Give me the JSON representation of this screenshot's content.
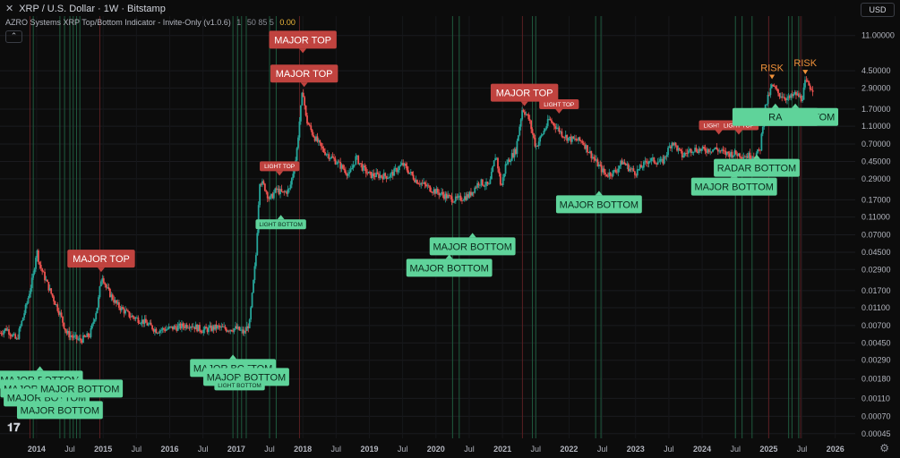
{
  "header": {
    "close_glyph": "✕",
    "symbol": "XRP / U.S. Dollar · 1W · Bitstamp",
    "indicator_name": "AZRO Systems XRP Top/Bottom Indicator - Invite-Only (v1.0.6)",
    "indicator_params": "1",
    "indicator_params2": "50 85 5",
    "indicator_value": "0.00",
    "collapse_glyph": "⌃"
  },
  "currency": "USD",
  "colors": {
    "bg": "#0c0c0c",
    "up": "#26a69a",
    "down": "#ef5350",
    "top_label": "#c0433f",
    "bottom_label": "#5fd39a",
    "risk": "#f0923a",
    "vline_green": "#1f5a3e",
    "vline_red": "#5a1f22"
  },
  "icons": {
    "logo": "tradingview-logo-icon",
    "settings": "gear-icon"
  },
  "chart_data": {
    "type": "candlestick",
    "y_scale": "log",
    "ylim": [
      0.0004,
      18
    ],
    "xlim": [
      2013.45,
      2026.3
    ],
    "y_ticks": [
      "11.00000",
      "4.50000",
      "2.90000",
      "1.70000",
      "1.10000",
      "0.70000",
      "0.45000",
      "0.29000",
      "0.17000",
      "0.11000",
      "0.07000",
      "0.04500",
      "0.02900",
      "0.01700",
      "0.01100",
      "0.00700",
      "0.00450",
      "0.00290",
      "0.00180",
      "0.00110",
      "0.00070",
      "0.00045"
    ],
    "x_ticks": [
      {
        "label": "2014",
        "x": 2014.0
      },
      {
        "label": "Jul",
        "x": 2014.5
      },
      {
        "label": "2015",
        "x": 2015.0
      },
      {
        "label": "Jul",
        "x": 2015.5
      },
      {
        "label": "2016",
        "x": 2016.0
      },
      {
        "label": "Jul",
        "x": 2016.5
      },
      {
        "label": "2017",
        "x": 2017.0
      },
      {
        "label": "Jul",
        "x": 2017.5
      },
      {
        "label": "2018",
        "x": 2018.0
      },
      {
        "label": "Jul",
        "x": 2018.5
      },
      {
        "label": "2019",
        "x": 2019.0
      },
      {
        "label": "Jul",
        "x": 2019.5
      },
      {
        "label": "2020",
        "x": 2020.0
      },
      {
        "label": "Jul",
        "x": 2020.5
      },
      {
        "label": "2021",
        "x": 2021.0
      },
      {
        "label": "Jul",
        "x": 2021.5
      },
      {
        "label": "2022",
        "x": 2022.0
      },
      {
        "label": "Jul",
        "x": 2022.5
      },
      {
        "label": "2023",
        "x": 2023.0
      },
      {
        "label": "Jul",
        "x": 2023.5
      },
      {
        "label": "2024",
        "x": 2024.0
      },
      {
        "label": "Jul",
        "x": 2024.5
      },
      {
        "label": "2025",
        "x": 2025.0
      },
      {
        "label": "Jul",
        "x": 2025.5
      },
      {
        "label": "2026",
        "x": 2026.0
      }
    ],
    "price_path": [
      [
        2013.45,
        0.0058
      ],
      [
        2013.55,
        0.0065
      ],
      [
        2013.7,
        0.0048
      ],
      [
        2013.85,
        0.012
      ],
      [
        2013.95,
        0.025
      ],
      [
        2014.0,
        0.048
      ],
      [
        2014.05,
        0.032
      ],
      [
        2014.2,
        0.017
      ],
      [
        2014.35,
        0.0095
      ],
      [
        2014.45,
        0.0058
      ],
      [
        2014.55,
        0.0052
      ],
      [
        2014.65,
        0.0048
      ],
      [
        2014.8,
        0.0055
      ],
      [
        2014.92,
        0.012
      ],
      [
        2014.98,
        0.026
      ],
      [
        2015.05,
        0.018
      ],
      [
        2015.2,
        0.012
      ],
      [
        2015.4,
        0.009
      ],
      [
        2015.6,
        0.0078
      ],
      [
        2015.8,
        0.0062
      ],
      [
        2016.0,
        0.0065
      ],
      [
        2016.15,
        0.0068
      ],
      [
        2016.3,
        0.0072
      ],
      [
        2016.5,
        0.0062
      ],
      [
        2016.7,
        0.0067
      ],
      [
        2016.85,
        0.0064
      ],
      [
        2017.0,
        0.0065
      ],
      [
        2017.12,
        0.0058
      ],
      [
        2017.2,
        0.0075
      ],
      [
        2017.3,
        0.045
      ],
      [
        2017.35,
        0.28
      ],
      [
        2017.42,
        0.24
      ],
      [
        2017.5,
        0.17
      ],
      [
        2017.6,
        0.22
      ],
      [
        2017.7,
        0.2
      ],
      [
        2017.8,
        0.22
      ],
      [
        2017.9,
        0.5
      ],
      [
        2017.96,
        1.5
      ],
      [
        2018.0,
        2.85
      ],
      [
        2018.05,
        1.3
      ],
      [
        2018.15,
        0.9
      ],
      [
        2018.3,
        0.6
      ],
      [
        2018.5,
        0.45
      ],
      [
        2018.7,
        0.32
      ],
      [
        2018.8,
        0.5
      ],
      [
        2018.9,
        0.38
      ],
      [
        2019.0,
        0.32
      ],
      [
        2019.3,
        0.31
      ],
      [
        2019.5,
        0.42
      ],
      [
        2019.7,
        0.28
      ],
      [
        2019.9,
        0.23
      ],
      [
        2020.0,
        0.21
      ],
      [
        2020.2,
        0.18
      ],
      [
        2020.3,
        0.17
      ],
      [
        2020.5,
        0.19
      ],
      [
        2020.65,
        0.27
      ],
      [
        2020.8,
        0.24
      ],
      [
        2020.9,
        0.55
      ],
      [
        2020.98,
        0.23
      ],
      [
        2021.05,
        0.42
      ],
      [
        2021.2,
        0.6
      ],
      [
        2021.3,
        1.75
      ],
      [
        2021.4,
        1.3
      ],
      [
        2021.5,
        0.65
      ],
      [
        2021.6,
        0.9
      ],
      [
        2021.7,
        1.3
      ],
      [
        2021.8,
        1.1
      ],
      [
        2021.9,
        0.9
      ],
      [
        2022.0,
        0.8
      ],
      [
        2022.2,
        0.75
      ],
      [
        2022.4,
        0.45
      ],
      [
        2022.55,
        0.32
      ],
      [
        2022.7,
        0.35
      ],
      [
        2022.8,
        0.45
      ],
      [
        2022.9,
        0.38
      ],
      [
        2023.0,
        0.34
      ],
      [
        2023.2,
        0.47
      ],
      [
        2023.4,
        0.44
      ],
      [
        2023.55,
        0.75
      ],
      [
        2023.7,
        0.52
      ],
      [
        2023.85,
        0.62
      ],
      [
        2024.0,
        0.6
      ],
      [
        2024.2,
        0.62
      ],
      [
        2024.35,
        0.55
      ],
      [
        2024.5,
        0.55
      ],
      [
        2024.65,
        0.52
      ],
      [
        2024.8,
        0.53
      ],
      [
        2024.87,
        0.6
      ],
      [
        2024.93,
        1.6
      ],
      [
        2025.0,
        2.4
      ],
      [
        2025.05,
        3.1
      ],
      [
        2025.15,
        2.5
      ],
      [
        2025.3,
        2.2
      ],
      [
        2025.4,
        2.5
      ],
      [
        2025.5,
        2.2
      ],
      [
        2025.55,
        3.4
      ],
      [
        2025.62,
        3.0
      ],
      [
        2025.68,
        2.8
      ]
    ],
    "vlines_green": [
      2013.95,
      2014.35,
      2014.42,
      2014.5,
      2014.55,
      2014.6,
      2014.65,
      2016.95,
      2017.02,
      2017.08,
      2017.15,
      2017.5,
      2017.6,
      2020.25,
      2020.35,
      2021.45,
      2021.5,
      2022.4,
      2022.48,
      2024.5,
      2024.6,
      2024.75,
      2025.3,
      2025.35,
      2025.45
    ],
    "vlines_red": [
      2013.9,
      2014.95,
      2017.95,
      2021.3,
      2025.0,
      2025.48
    ],
    "annotations": [
      {
        "text": "MAJOR TOP",
        "kind": "top",
        "x": 2014.97,
        "y": 0.026
      },
      {
        "text": "MAJOR TOP",
        "kind": "top",
        "x": 2018.0,
        "y": 3.9,
        "stack": 1
      },
      {
        "text": "MAJOR TOP",
        "kind": "top",
        "x": 2018.02,
        "y": 2.85
      },
      {
        "text": "MAJOR TOP",
        "kind": "top",
        "x": 2021.33,
        "y": 1.75
      },
      {
        "text": "LIGHT TOP",
        "kind": "top-small",
        "x": 2017.65,
        "y": 0.3
      },
      {
        "text": "LIGHT TOP",
        "kind": "top-small",
        "x": 2021.85,
        "y": 1.45
      },
      {
        "text": "LIGHT TOP",
        "kind": "top-small",
        "x": 2024.25,
        "y": 0.85
      },
      {
        "text": "LIGHT TOP",
        "kind": "top-small",
        "x": 2024.55,
        "y": 0.85
      },
      {
        "text": "RISK",
        "kind": "risk",
        "x": 2025.05,
        "y": 3.1
      },
      {
        "text": "RISK",
        "kind": "risk",
        "x": 2025.55,
        "y": 3.5
      },
      {
        "text": "MAJOR BOTTOM",
        "kind": "bottom",
        "x": 2014.05,
        "y": 0.0032,
        "dy": 10
      },
      {
        "text": "MAJOR BOTTOM",
        "kind": "bottom",
        "x": 2014.1,
        "y": 0.0032,
        "dy": 20
      },
      {
        "text": "MAJOR BOTTOM",
        "kind": "bottom",
        "x": 2014.15,
        "y": 0.0032,
        "dy": 30
      },
      {
        "text": "MAJOR BOTTOM",
        "kind": "bottom",
        "x": 2014.65,
        "y": 0.0032,
        "dy": 20
      },
      {
        "text": "MAJOR BOTTOM",
        "kind": "bottom",
        "x": 2014.35,
        "y": 0.0032,
        "dy": 44
      },
      {
        "text": "MAJOR BOTTOM",
        "kind": "bottom",
        "x": 2016.95,
        "y": 0.0043,
        "dy": 10
      },
      {
        "text": "MAJOR BOTTOM",
        "kind": "bottom",
        "x": 2017.15,
        "y": 0.0043,
        "dy": 20
      },
      {
        "text": "LIGHT BOTTOM",
        "kind": "bottom-small",
        "x": 2017.05,
        "y": 0.0043,
        "dy": 34
      },
      {
        "text": "LIGHT BOTTOM",
        "kind": "bottom-small",
        "x": 2017.67,
        "y": 0.13,
        "dy": 4
      },
      {
        "text": "MAJOR BOTTOM",
        "kind": "bottom",
        "x": 2020.2,
        "y": 0.17,
        "dy": 60
      },
      {
        "text": "MAJOR BOTTOM",
        "kind": "bottom",
        "x": 2020.55,
        "y": 0.17,
        "dy": 36
      },
      {
        "text": "MAJOR BOTTOM",
        "kind": "bottom",
        "x": 2022.45,
        "y": 0.3,
        "dy": 14
      },
      {
        "text": "MAJOR BOTTOM",
        "kind": "bottom",
        "x": 2024.48,
        "y": 0.47,
        "dy": 14
      },
      {
        "text": "RADAR BOTTOM",
        "kind": "bottom",
        "x": 2024.82,
        "y": 0.55,
        "dy": 0
      },
      {
        "text": "RADAR BOTTOM",
        "kind": "bottom",
        "x": 2025.4,
        "y": 2.4,
        "dy": 8
      },
      {
        "text": "RADAR BOTTOM",
        "kind": "bottom",
        "x": 2025.1,
        "y": 2.4,
        "dy": 8,
        "clip": "RA"
      }
    ]
  }
}
